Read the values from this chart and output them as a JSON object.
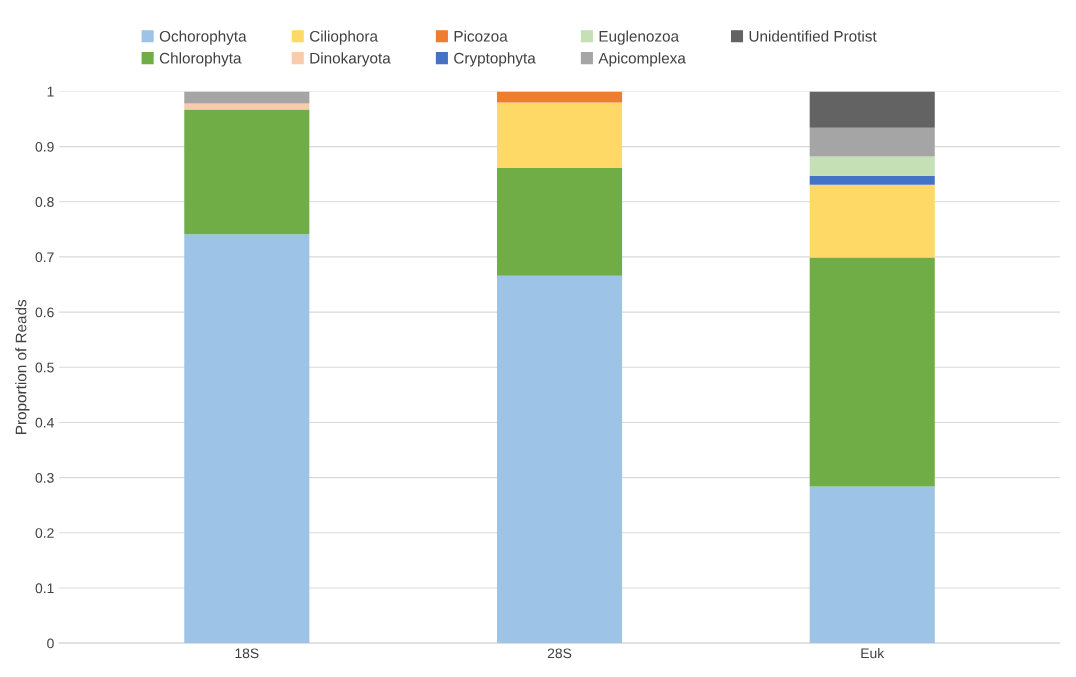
{
  "chart_data": {
    "type": "bar",
    "stacked": true,
    "ylabel": "Proportion of Reads",
    "categories": [
      "18S",
      "28S",
      "Euk"
    ],
    "ylim": [
      0,
      1
    ],
    "yticks": [
      0,
      0.1,
      0.2,
      0.3,
      0.4,
      0.5,
      0.6,
      0.7,
      0.8,
      0.9,
      1
    ],
    "grid": "y",
    "legend": "top",
    "series": [
      {
        "name": "Ochorophyta",
        "color": "#9dc3e6",
        "values": [
          0.741,
          0.666,
          0.284
        ]
      },
      {
        "name": "Chlorophyta",
        "color": "#70ad47",
        "values": [
          0.226,
          0.195,
          0.415
        ]
      },
      {
        "name": "Ciliophora",
        "color": "#ffd966",
        "values": [
          0,
          0.119,
          0.132
        ]
      },
      {
        "name": "Dinokaryota",
        "color": "#f8cbad",
        "values": [
          0.011,
          0,
          0
        ]
      },
      {
        "name": "Picozoa",
        "color": "#ed7d31",
        "values": [
          0,
          0.02,
          0
        ]
      },
      {
        "name": "Cryptophyta",
        "color": "#4472c4",
        "values": [
          0,
          0,
          0.016
        ]
      },
      {
        "name": "Euglenozoa",
        "color": "#c5e0b4",
        "values": [
          0,
          0,
          0.035
        ]
      },
      {
        "name": "Apicomplexa",
        "color": "#a5a5a5",
        "values": [
          0.022,
          0,
          0.052
        ]
      },
      {
        "name": "Unidentified Protist",
        "color": "#636363",
        "values": [
          0,
          0,
          0.066
        ]
      }
    ]
  }
}
